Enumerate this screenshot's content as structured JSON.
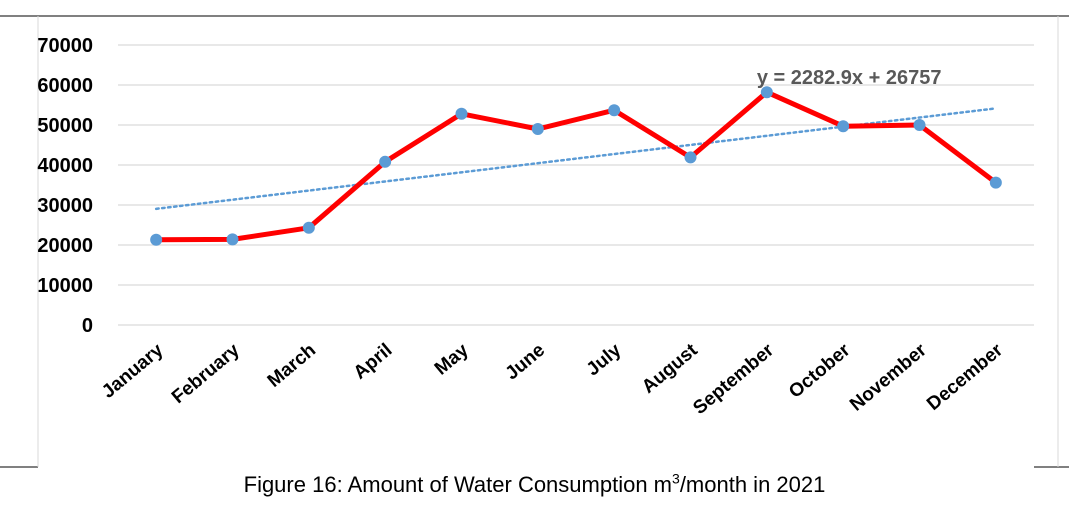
{
  "chart_data": {
    "type": "line",
    "categories": [
      "January",
      "February",
      "March",
      "April",
      "May",
      "June",
      "July",
      "August",
      "September",
      "October",
      "November",
      "December"
    ],
    "series": [
      {
        "values": [
          21300,
          21400,
          24300,
          40800,
          52800,
          49000,
          53700,
          41900,
          58200,
          49700,
          50000,
          35600
        ]
      }
    ],
    "trendline": {
      "type": "linear",
      "equation": "y = 2282.9x + 26757",
      "slope": 2282.9,
      "intercept": 26757
    },
    "ylim": [
      0,
      70000
    ],
    "yticks": [
      "0",
      "10000",
      "20000",
      "30000",
      "40000",
      "50000",
      "60000",
      "70000"
    ],
    "grid": true,
    "legend": "none",
    "colors": {
      "series_line": "#ff0000",
      "markers": "#5b9bd5",
      "trendline": "#5b9bd5",
      "grid": "#d9d9d9"
    }
  },
  "caption": {
    "prefix": "Figure 16: Amount of Water Consumption m",
    "superscript": "3",
    "suffix": "/month in 2021"
  }
}
